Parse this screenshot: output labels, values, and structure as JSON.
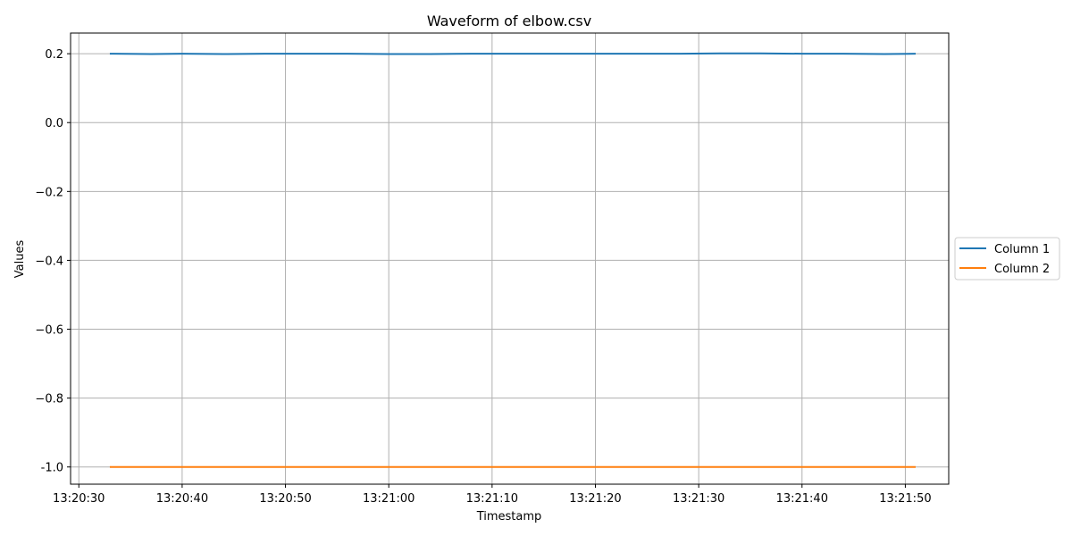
{
  "chart_data": {
    "type": "line",
    "title": "Waveform of elbow.csv",
    "xlabel": "Timestamp",
    "ylabel": "Values",
    "x_tick_labels": [
      "13:20:30",
      "13:20:40",
      "13:20:50",
      "13:21:00",
      "13:21:10",
      "13:21:20",
      "13:21:30",
      "13:21:40",
      "13:21:50"
    ],
    "y_tick_labels": [
      "0.2",
      "0.0",
      "−0.2",
      "−0.4",
      "−0.6",
      "−0.8",
      "-1.0"
    ],
    "xlim": [
      "13:20:29.2",
      "13:21:54.2"
    ],
    "ylim": [
      -1.05,
      0.26
    ],
    "grid": true,
    "legend_position": "right-outside",
    "x": [
      "13:20:33",
      "13:20:37",
      "13:20:40",
      "13:20:44",
      "13:20:48",
      "13:20:52",
      "13:20:56",
      "13:21:00",
      "13:21:04",
      "13:21:08",
      "13:21:12",
      "13:21:16",
      "13:21:20",
      "13:21:24",
      "13:21:28",
      "13:21:32",
      "13:21:36",
      "13:21:40",
      "13:21:44",
      "13:21:48",
      "13:21:51"
    ],
    "series": [
      {
        "name": "Column 1",
        "color": "#1f77b4",
        "values": [
          0.2,
          0.199,
          0.2,
          0.199,
          0.2,
          0.2,
          0.2,
          0.199,
          0.199,
          0.2,
          0.2,
          0.2,
          0.2,
          0.2,
          0.2,
          0.201,
          0.201,
          0.2,
          0.2,
          0.199,
          0.2
        ]
      },
      {
        "name": "Column 2",
        "color": "#ff7f0e",
        "values": [
          -1.0,
          -1.0,
          -1.0,
          -1.0,
          -1.0,
          -1.0,
          -1.0,
          -1.0,
          -1.0,
          -1.0,
          -1.0,
          -1.0,
          -1.0,
          -1.0,
          -1.0,
          -1.0,
          -1.0,
          -1.0,
          -1.0,
          -1.0,
          -1.0
        ]
      }
    ]
  }
}
